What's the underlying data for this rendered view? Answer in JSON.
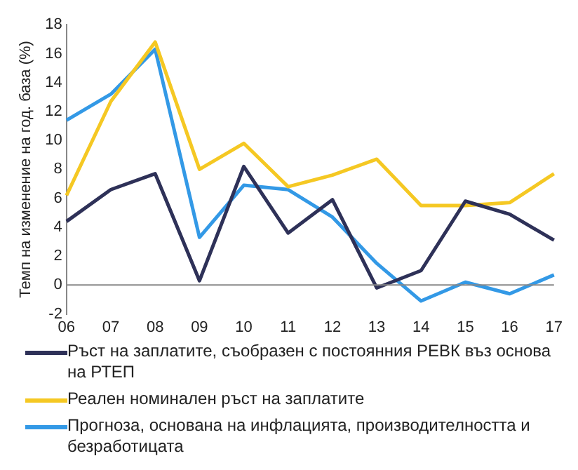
{
  "chart_data": {
    "type": "line",
    "ylabel": "Темп на изменение на год. база (%)",
    "categories": [
      "06",
      "07",
      "08",
      "09",
      "10",
      "11",
      "12",
      "13",
      "14",
      "15",
      "16",
      "17"
    ],
    "ylim": [
      -2,
      18
    ],
    "yticks": [
      -2,
      0,
      2,
      4,
      6,
      8,
      10,
      12,
      14,
      16,
      18
    ],
    "grid": false,
    "legend": "bottom",
    "marker": "none",
    "line_style": "solid",
    "series": [
      {
        "name": "Ръст на заплатите, съобразен с постоянния РЕВК въз основа на РТЕП",
        "color": "#2e3158",
        "values": [
          4.4,
          6.6,
          7.7,
          0.3,
          8.2,
          3.6,
          5.9,
          -0.2,
          1.0,
          5.8,
          4.9,
          3.1
        ]
      },
      {
        "name": "Реален номинален ръст на заплатите",
        "color": "#f5c823",
        "values": [
          6.2,
          12.7,
          16.8,
          8.0,
          9.8,
          6.8,
          7.6,
          8.7,
          5.5,
          5.5,
          5.7,
          7.7
        ]
      },
      {
        "name": "Прогноза, основана на инфлацията, производителността и безработицата",
        "color": "#3399e6",
        "values": [
          11.4,
          13.2,
          16.3,
          3.3,
          6.9,
          6.6,
          4.7,
          1.5,
          -1.1,
          0.2,
          -0.6,
          0.7
        ]
      }
    ]
  }
}
